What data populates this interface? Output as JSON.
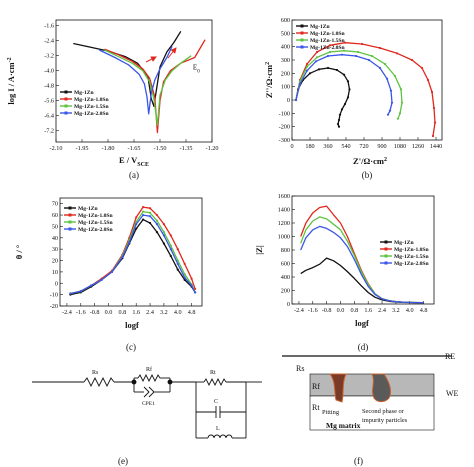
{
  "series_names": [
    "Mg-1Zn",
    "Mg-1Zn-1.0Sn",
    "Mg-1Zn-1.5Sn",
    "Mg-1Zn-2.0Sn"
  ],
  "colors": {
    "Mg-1Zn": "#111111",
    "Mg-1Zn-1.0Sn": "#e0281e",
    "Mg-1Zn-1.5Sn": "#5ec242",
    "Mg-1Zn-2.0Sn": "#3a56e8",
    "arrow": "#e0281e"
  },
  "chart_data": [
    {
      "id": "a",
      "type": "line",
      "panel_label": "(a)",
      "xlabel": "E / V",
      "xlabel_sub": "SCE",
      "ylabel": "log I / A·cm",
      "ylabel_sup": "-2",
      "xlim": [
        -2.1,
        -1.2
      ],
      "ylim": [
        -7.8,
        -1.3
      ],
      "xticks": [
        "-2.10",
        "-1.95",
        "-1.80",
        "-1.65",
        "-1.50",
        "-1.35",
        "-1.20"
      ],
      "xtick_values": [
        -2.1,
        -1.95,
        -1.8,
        -1.65,
        -1.5,
        -1.35,
        -1.2
      ],
      "yticks": [
        "-1.6",
        "-2.4",
        "-3.2",
        "-4.0",
        "-4.8",
        "-5.6",
        "-6.4",
        "-7.2"
      ],
      "ytick_values": [
        -1.6,
        -2.4,
        -3.2,
        -4.0,
        -4.8,
        -5.6,
        -6.4,
        -7.2
      ],
      "annotations": [
        {
          "text": "E",
          "sub": "0",
          "x": -1.31,
          "y": -3.95
        }
      ],
      "legend_position": "bottom-left",
      "series": [
        {
          "name": "Mg-1Zn",
          "x": [
            -2.0,
            -1.9,
            -1.8,
            -1.7,
            -1.63,
            -1.57,
            -1.55,
            -1.535,
            -1.52,
            -1.5,
            -1.46,
            -1.42,
            -1.38
          ],
          "y": [
            -2.55,
            -2.75,
            -2.95,
            -3.25,
            -3.6,
            -4.3,
            -5.5,
            -5.9,
            -5.0,
            -3.8,
            -3.0,
            -2.5,
            -1.9
          ]
        },
        {
          "name": "Mg-1Zn-1.0Sn",
          "x": [
            -1.82,
            -1.74,
            -1.66,
            -1.6,
            -1.56,
            -1.53,
            -1.515,
            -1.5,
            -1.48,
            -1.44,
            -1.38,
            -1.3,
            -1.24
          ],
          "y": [
            -2.85,
            -3.15,
            -3.5,
            -3.9,
            -4.4,
            -5.4,
            -7.3,
            -5.6,
            -4.6,
            -4.0,
            -3.6,
            -3.3,
            -2.35
          ]
        },
        {
          "name": "Mg-1Zn-1.5Sn",
          "x": [
            -1.82,
            -1.74,
            -1.66,
            -1.6,
            -1.56,
            -1.535,
            -1.515,
            -1.5,
            -1.47,
            -1.43,
            -1.38,
            -1.32
          ],
          "y": [
            -2.9,
            -3.25,
            -3.6,
            -4.0,
            -4.6,
            -5.5,
            -6.9,
            -5.3,
            -4.5,
            -4.0,
            -3.6,
            -3.2
          ]
        },
        {
          "name": "Mg-1Zn-2.0Sn",
          "x": [
            -1.85,
            -1.76,
            -1.68,
            -1.62,
            -1.59,
            -1.575,
            -1.565,
            -1.55,
            -1.53,
            -1.5,
            -1.46,
            -1.43
          ],
          "y": [
            -2.9,
            -3.3,
            -3.7,
            -4.2,
            -4.7,
            -5.4,
            -6.3,
            -5.2,
            -4.5,
            -3.9,
            -3.3,
            -2.7
          ]
        }
      ]
    },
    {
      "id": "b",
      "type": "line",
      "panel_label": "(b)",
      "xlabel": "Z'/Ω·cm",
      "xlabel_sup": "2",
      "ylabel": "Z''/Ω·cm",
      "ylabel_sup": "2",
      "xlim": [
        0,
        1500
      ],
      "ylim": [
        -300,
        600
      ],
      "xticks": [
        "0",
        "180",
        "360",
        "540",
        "720",
        "900",
        "1080",
        "1260",
        "1440"
      ],
      "xtick_values": [
        0,
        180,
        360,
        540,
        720,
        900,
        1080,
        1260,
        1440
      ],
      "yticks": [
        "-300",
        "-200",
        "-100",
        "0",
        "100",
        "200",
        "300",
        "400",
        "500",
        "600"
      ],
      "ytick_values": [
        -300,
        -200,
        -100,
        0,
        100,
        200,
        300,
        400,
        500,
        600
      ],
      "legend_position": "top-left",
      "series": [
        {
          "name": "Mg-1Zn",
          "x": [
            40,
            60,
            110,
            180,
            270,
            360,
            450,
            520,
            560,
            575,
            560,
            530,
            500,
            480,
            470,
            460,
            470
          ],
          "y": [
            0,
            80,
            150,
            200,
            230,
            240,
            225,
            190,
            140,
            80,
            20,
            -30,
            -70,
            -110,
            -150,
            -180,
            -200
          ]
        },
        {
          "name": "Mg-1Zn-1.0Sn",
          "x": [
            40,
            80,
            150,
            250,
            380,
            530,
            700,
            880,
            1050,
            1200,
            1300,
            1360,
            1400,
            1420,
            1430,
            1410
          ],
          "y": [
            0,
            150,
            270,
            360,
            410,
            430,
            420,
            390,
            350,
            300,
            240,
            150,
            60,
            -60,
            -170,
            -270
          ]
        },
        {
          "name": "Mg-1Zn-1.5Sn",
          "x": [
            40,
            80,
            150,
            250,
            380,
            520,
            660,
            800,
            930,
            1030,
            1090,
            1100,
            1080,
            1060
          ],
          "y": [
            0,
            140,
            250,
            320,
            360,
            370,
            360,
            330,
            270,
            180,
            80,
            -20,
            -100,
            -140
          ]
        },
        {
          "name": "Mg-1Zn-2.0Sn",
          "x": [
            40,
            80,
            150,
            240,
            360,
            500,
            640,
            770,
            880,
            950,
            990,
            1000,
            980,
            960
          ],
          "y": [
            0,
            120,
            220,
            290,
            330,
            340,
            330,
            300,
            240,
            160,
            70,
            -20,
            -80,
            -110
          ]
        }
      ]
    },
    {
      "id": "c",
      "type": "line",
      "panel_label": "(c)",
      "xlabel": "logf",
      "ylabel": "θ / °",
      "xlim": [
        -2.8,
        5.4
      ],
      "ylim": [
        -20,
        75
      ],
      "xticks": [
        "-2.4",
        "-1.6",
        "-0.8",
        "0.0",
        "0.8",
        "1.6",
        "2.4",
        "3.2",
        "4.0",
        "4.8"
      ],
      "xtick_values": [
        -2.4,
        -1.6,
        -0.8,
        0.0,
        0.8,
        1.6,
        2.4,
        3.2,
        4.0,
        4.8
      ],
      "yticks": [
        "-20",
        "-10",
        "0",
        "10",
        "20",
        "30",
        "40",
        "50",
        "60",
        "70"
      ],
      "ytick_values": [
        -20,
        -10,
        0,
        10,
        20,
        30,
        40,
        50,
        60,
        70
      ],
      "legend_position": "top-left",
      "series": [
        {
          "name": "Mg-1Zn",
          "x": [
            -2.2,
            -1.6,
            -1.0,
            -0.4,
            0.2,
            0.8,
            1.2,
            1.6,
            2.0,
            2.4,
            2.8,
            3.2,
            3.6,
            4.0,
            4.4,
            4.8,
            5.0
          ],
          "y": [
            -10,
            -8,
            -3,
            3,
            10,
            22,
            35,
            48,
            56,
            53,
            45,
            35,
            24,
            12,
            3,
            -3,
            -8
          ]
        },
        {
          "name": "Mg-1Zn-1.0Sn",
          "x": [
            -2.2,
            -1.6,
            -1.0,
            -0.4,
            0.2,
            0.8,
            1.2,
            1.6,
            2.0,
            2.4,
            2.8,
            3.2,
            3.6,
            4.0,
            4.4,
            4.8,
            5.0
          ],
          "y": [
            -9,
            -7,
            -2,
            4,
            11,
            25,
            40,
            58,
            67,
            66,
            60,
            52,
            42,
            30,
            17,
            4,
            -5
          ]
        },
        {
          "name": "Mg-1Zn-1.5Sn",
          "x": [
            -2.2,
            -1.6,
            -1.0,
            -0.4,
            0.2,
            0.8,
            1.2,
            1.6,
            2.0,
            2.4,
            2.8,
            3.2,
            3.6,
            4.0,
            4.4,
            4.8,
            5.0
          ],
          "y": [
            -9,
            -7,
            -2,
            3,
            10,
            24,
            38,
            54,
            63,
            62,
            55,
            45,
            33,
            20,
            8,
            -1,
            -8
          ]
        },
        {
          "name": "Mg-1Zn-2.0Sn",
          "x": [
            -2.2,
            -1.6,
            -1.0,
            -0.4,
            0.2,
            0.8,
            1.2,
            1.6,
            2.0,
            2.4,
            2.8,
            3.2,
            3.6,
            4.0,
            4.4,
            4.8,
            5.0
          ],
          "y": [
            -9,
            -7,
            -2,
            3,
            10,
            23,
            36,
            52,
            60,
            59,
            52,
            42,
            30,
            17,
            5,
            -2,
            -8
          ]
        }
      ]
    },
    {
      "id": "d",
      "type": "line",
      "panel_label": "(d)",
      "xlabel": "logf",
      "ylabel": "|Z|",
      "xlim": [
        -2.8,
        5.4
      ],
      "ylim": [
        0,
        1600
      ],
      "xticks": [
        "-2.4",
        "-1.6",
        "-0.8",
        "0.0",
        "0.8",
        "1.6",
        "2.4",
        "3.2",
        "4.0",
        "4.8"
      ],
      "xtick_values": [
        -2.4,
        -1.6,
        -0.8,
        0.0,
        0.8,
        1.6,
        2.4,
        3.2,
        4.0,
        4.8
      ],
      "yticks": [
        "0",
        "200",
        "400",
        "600",
        "800",
        "1000",
        "1200",
        "1400",
        "1600"
      ],
      "ytick_values": [
        0,
        200,
        400,
        600,
        800,
        1000,
        1200,
        1400,
        1600
      ],
      "legend_position": "top-right",
      "series": [
        {
          "name": "Mg-1Zn",
          "x": [
            -2.3,
            -2.0,
            -1.6,
            -1.2,
            -0.8,
            -0.4,
            0.0,
            0.4,
            0.8,
            1.2,
            1.6,
            2.0,
            2.4,
            2.8,
            3.2,
            3.6,
            4.0,
            4.4,
            4.8
          ],
          "y": [
            450,
            500,
            540,
            590,
            680,
            640,
            570,
            480,
            380,
            270,
            170,
            100,
            60,
            40,
            30,
            25,
            22,
            20,
            18
          ]
        },
        {
          "name": "Mg-1Zn-1.0Sn",
          "x": [
            -2.3,
            -2.0,
            -1.6,
            -1.2,
            -0.8,
            -0.4,
            0.0,
            0.4,
            0.8,
            1.2,
            1.6,
            2.0,
            2.4,
            2.8,
            3.2,
            3.6,
            4.0,
            4.4,
            4.8
          ],
          "y": [
            1000,
            1200,
            1350,
            1430,
            1450,
            1320,
            1200,
            1000,
            750,
            500,
            300,
            150,
            80,
            50,
            35,
            28,
            24,
            22,
            20
          ]
        },
        {
          "name": "Mg-1Zn-1.5Sn",
          "x": [
            -2.3,
            -2.0,
            -1.6,
            -1.2,
            -0.8,
            -0.4,
            0.0,
            0.4,
            0.8,
            1.2,
            1.6,
            2.0,
            2.4,
            2.8,
            3.2,
            3.6,
            4.0,
            4.4,
            4.8
          ],
          "y": [
            900,
            1100,
            1230,
            1290,
            1260,
            1180,
            1100,
            930,
            720,
            480,
            290,
            150,
            80,
            50,
            35,
            28,
            24,
            22,
            20
          ]
        },
        {
          "name": "Mg-1Zn-2.0Sn",
          "x": [
            -2.3,
            -2.0,
            -1.6,
            -1.2,
            -0.8,
            -0.4,
            0.0,
            0.4,
            0.8,
            1.2,
            1.6,
            2.0,
            2.4,
            2.8,
            3.2,
            3.6,
            4.0,
            4.4,
            4.8
          ],
          "y": [
            800,
            980,
            1100,
            1150,
            1120,
            1060,
            980,
            850,
            660,
            440,
            260,
            140,
            75,
            48,
            34,
            27,
            23,
            21,
            19
          ]
        }
      ]
    }
  ],
  "circuit": {
    "panel_label": "(e)",
    "labels": {
      "rs": "Rs",
      "rf": "Rf",
      "rt": "Rt",
      "cpe": "CPE1",
      "c": "C",
      "l": "L"
    }
  },
  "schematic": {
    "panel_label": "(f)",
    "labels": {
      "rs": "Rs",
      "re": "RE",
      "we": "WE",
      "rf": "Rf",
      "rt": "Rt",
      "pitting": "Pitting",
      "second_phase_1": "Second phase or",
      "second_phase_2": "impurity particles",
      "matrix": "Mg matrix"
    }
  }
}
